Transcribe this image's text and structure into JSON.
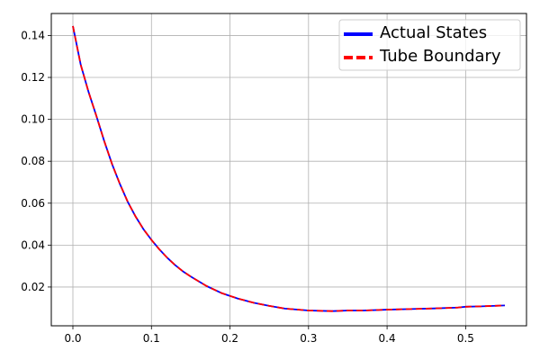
{
  "chart_data": {
    "type": "line",
    "title": "",
    "xlabel": "",
    "ylabel": "",
    "xlim": [
      -0.0275,
      0.5775
    ],
    "ylim": [
      0.0015,
      0.1505
    ],
    "grid": true,
    "legend_position": "top-right",
    "xticks": [
      0.0,
      0.1,
      0.2,
      0.3,
      0.4,
      0.5
    ],
    "xtick_labels": [
      "0.0",
      "0.1",
      "0.2",
      "0.3",
      "0.4",
      "0.5"
    ],
    "yticks": [
      0.02,
      0.04,
      0.06,
      0.08,
      0.1,
      0.12,
      0.14
    ],
    "ytick_labels": [
      "0.02",
      "0.04",
      "0.06",
      "0.08",
      "0.10",
      "0.12",
      "0.14"
    ],
    "x": [
      0.0,
      0.01,
      0.02,
      0.03,
      0.04,
      0.05,
      0.06,
      0.07,
      0.08,
      0.09,
      0.1,
      0.11,
      0.12,
      0.13,
      0.14,
      0.15,
      0.17,
      0.19,
      0.21,
      0.23,
      0.25,
      0.27,
      0.3,
      0.33,
      0.35,
      0.37,
      0.4,
      0.43,
      0.46,
      0.49,
      0.5,
      0.52,
      0.55
    ],
    "series": [
      {
        "name": "Actual States",
        "color": "#0000ff",
        "style": "solid",
        "values": [
          0.1445,
          0.126,
          0.113,
          0.1015,
          0.0895,
          0.0785,
          0.069,
          0.0605,
          0.0535,
          0.0475,
          0.0425,
          0.038,
          0.034,
          0.0305,
          0.0275,
          0.025,
          0.0205,
          0.017,
          0.0145,
          0.0125,
          0.011,
          0.0097,
          0.0088,
          0.0085,
          0.0088,
          0.0088,
          0.0092,
          0.0095,
          0.0098,
          0.0102,
          0.0106,
          0.0108,
          0.0112
        ]
      },
      {
        "name": "Tube Boundary",
        "color": "#ff0000",
        "style": "dashed",
        "values": [
          0.1445,
          0.126,
          0.113,
          0.1015,
          0.0895,
          0.0785,
          0.069,
          0.0605,
          0.0535,
          0.0475,
          0.0425,
          0.038,
          0.034,
          0.0305,
          0.0275,
          0.025,
          0.0205,
          0.017,
          0.0145,
          0.0125,
          0.011,
          0.0097,
          0.0088,
          0.0085,
          0.0088,
          0.0088,
          0.0092,
          0.0095,
          0.0098,
          0.0102,
          0.0106,
          0.0108,
          0.0112
        ]
      }
    ]
  },
  "colors": {
    "grid": "#b0b0b0",
    "axes": "#000000",
    "legend_border": "#cccccc"
  }
}
